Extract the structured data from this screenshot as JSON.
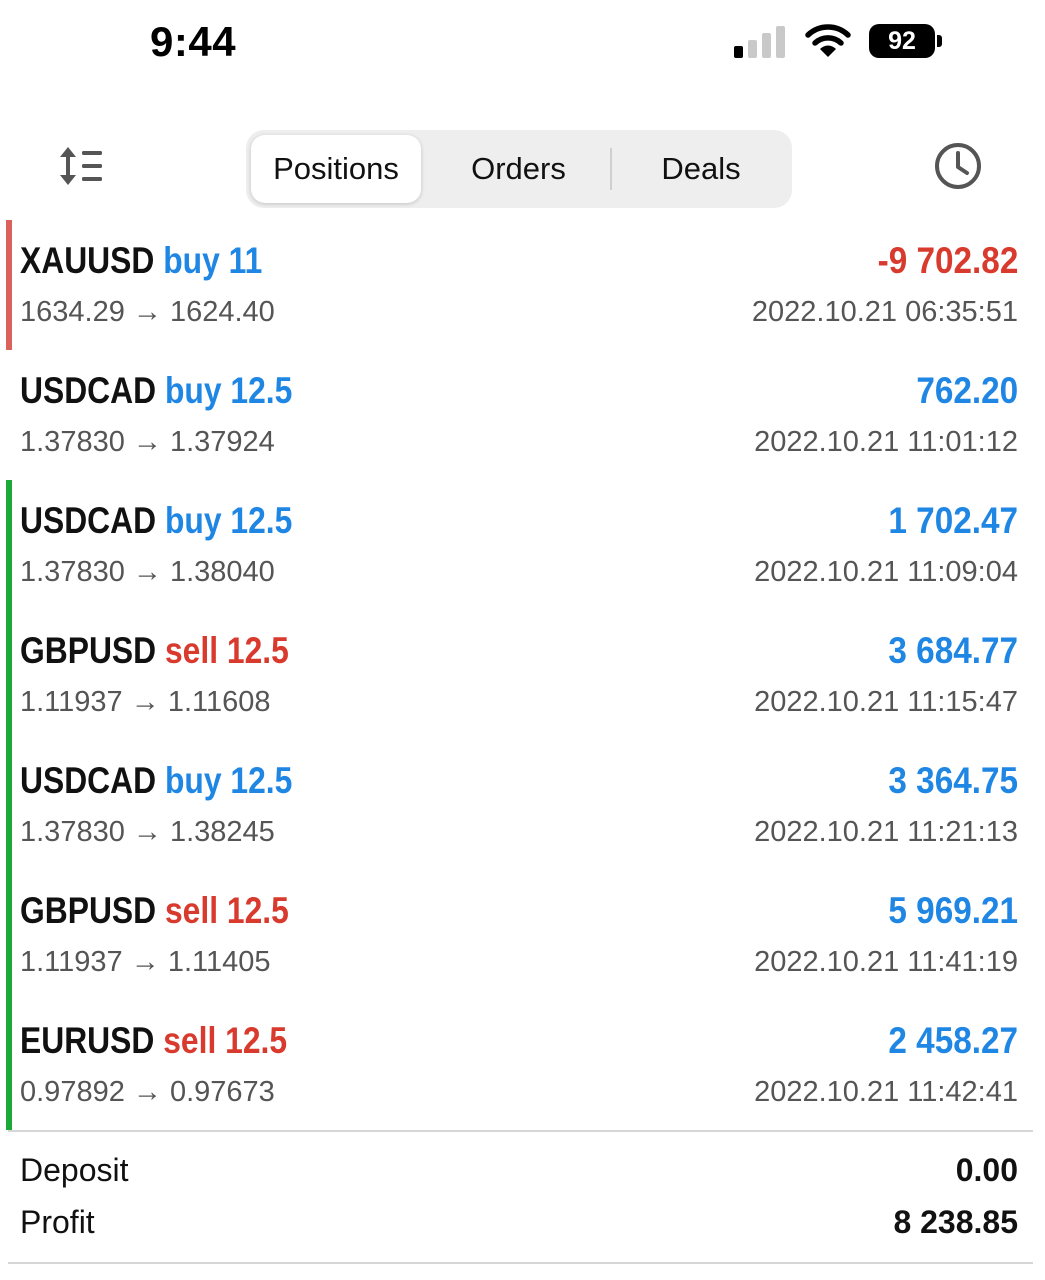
{
  "status_bar": {
    "time": "9:44",
    "battery": "92",
    "signal_icon": "cellular-signal-icon",
    "wifi_icon": "wifi-icon"
  },
  "toolbar": {
    "sort_icon": "sort-icon",
    "history_icon": "clock-history-icon",
    "tabs": [
      {
        "label": "Positions",
        "selected": true
      },
      {
        "label": "Orders",
        "selected": false
      },
      {
        "label": "Deals",
        "selected": false
      }
    ]
  },
  "colors": {
    "buy": "#1f86e4",
    "sell": "#d83a2e",
    "profit_positive": "#1f86e4",
    "profit_negative": "#d83a2e",
    "accent_loss": "#d9625a",
    "accent_gain": "#1ea83a"
  },
  "positions": [
    {
      "symbol": "XAUUSD",
      "side": "buy",
      "volume": "11",
      "open_price": "1634.29",
      "arrow": "→",
      "close_price": "1624.40",
      "profit": "-9 702.82",
      "time": "2022.10.21 06:35:51",
      "accent": "loss"
    },
    {
      "symbol": "USDCAD",
      "side": "buy",
      "volume": "12.5",
      "open_price": "1.37830",
      "arrow": "→",
      "close_price": "1.37924",
      "profit": "762.20",
      "time": "2022.10.21 11:01:12",
      "accent": "none"
    },
    {
      "symbol": "USDCAD",
      "side": "buy",
      "volume": "12.5",
      "open_price": "1.37830",
      "arrow": "→",
      "close_price": "1.38040",
      "profit": "1 702.47",
      "time": "2022.10.21 11:09:04",
      "accent": "gain"
    },
    {
      "symbol": "GBPUSD",
      "side": "sell",
      "volume": "12.5",
      "open_price": "1.11937",
      "arrow": "→",
      "close_price": "1.11608",
      "profit": "3 684.77",
      "time": "2022.10.21 11:15:47",
      "accent": "gain"
    },
    {
      "symbol": "USDCAD",
      "side": "buy",
      "volume": "12.5",
      "open_price": "1.37830",
      "arrow": "→",
      "close_price": "1.38245",
      "profit": "3 364.75",
      "time": "2022.10.21 11:21:13",
      "accent": "gain"
    },
    {
      "symbol": "GBPUSD",
      "side": "sell",
      "volume": "12.5",
      "open_price": "1.11937",
      "arrow": "→",
      "close_price": "1.11405",
      "profit": "5 969.21",
      "time": "2022.10.21 11:41:19",
      "accent": "gain"
    },
    {
      "symbol": "EURUSD",
      "side": "sell",
      "volume": "12.5",
      "open_price": "0.97892",
      "arrow": "→",
      "close_price": "0.97673",
      "profit": "2 458.27",
      "time": "2022.10.21 11:42:41",
      "accent": "gain"
    }
  ],
  "summary": {
    "deposit_label": "Deposit",
    "deposit_value": "0.00",
    "profit_label": "Profit",
    "profit_value": "8 238.85"
  }
}
